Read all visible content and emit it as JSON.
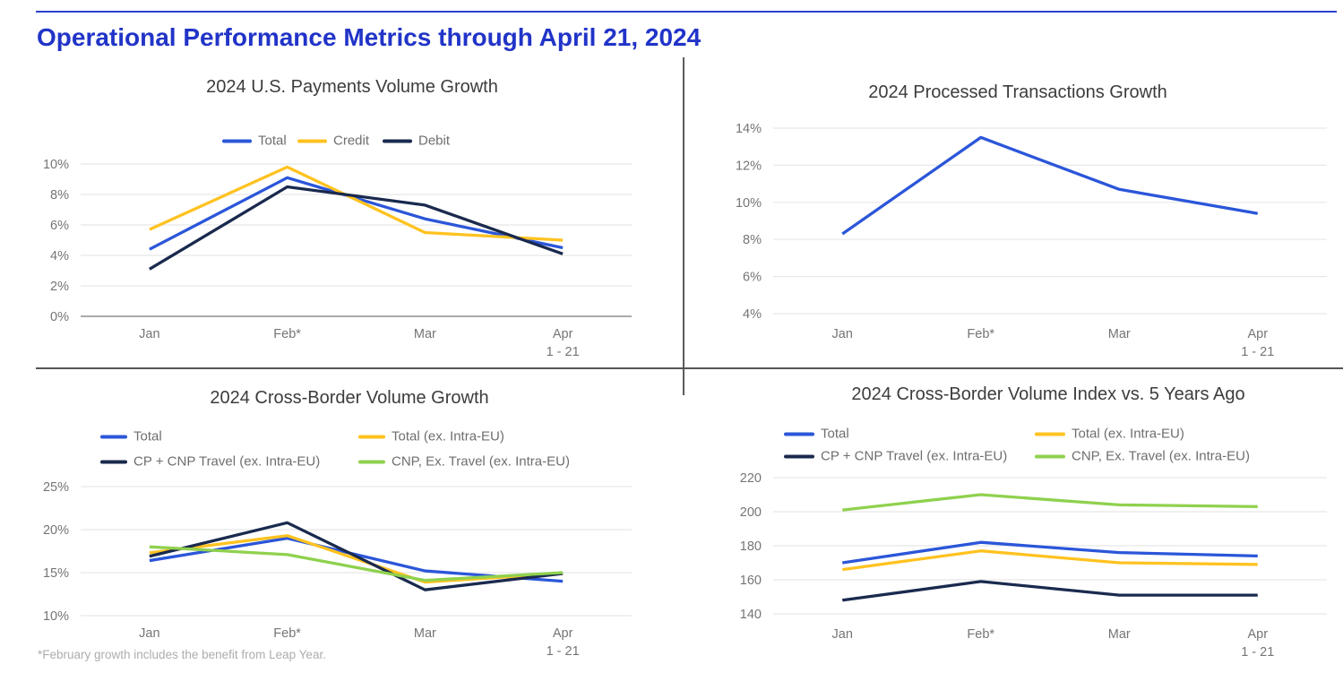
{
  "header": {
    "title": "Operational Performance Metrics through April 21, 2024",
    "accent_color": "#2134c8"
  },
  "footnote": "*February growth includes the benefit from Leap Year.",
  "colors": {
    "blue": "#2b56d9",
    "gold": "#ffc220",
    "navy": "#1a2a4e",
    "green": "#8fd14e",
    "gridline": "#e8e8e8",
    "axis_baseline": "#8f8f8f",
    "divider": "#555555"
  },
  "chart_data": [
    {
      "type": "line",
      "title": "2024 U.S. Payments Volume Growth",
      "categories": [
        "Jan",
        "Feb*",
        "Mar",
        "Apr"
      ],
      "last_category_note": "1 - 21",
      "yticks": [
        "10%",
        "8%",
        "6%",
        "4%",
        "2%",
        "0%"
      ],
      "ylim": [
        0,
        10
      ],
      "grid": true,
      "baseline_tick_index": 5,
      "legend_position": "top-center-row",
      "series": [
        {
          "name": "Total",
          "color": "#2b56d9",
          "values": [
            4.4,
            9.1,
            6.4,
            4.5
          ]
        },
        {
          "name": "Credit",
          "color": "#ffc220",
          "values": [
            5.7,
            9.8,
            5.5,
            5.0
          ]
        },
        {
          "name": "Debit",
          "color": "#1a2a4e",
          "values": [
            3.1,
            8.5,
            7.3,
            4.1
          ]
        }
      ]
    },
    {
      "type": "line",
      "title": "2024 Processed Transactions Growth",
      "categories": [
        "Jan",
        "Feb*",
        "Mar",
        "Apr"
      ],
      "last_category_note": "1 - 21",
      "yticks": [
        "14%",
        "12%",
        "10%",
        "8%",
        "6%",
        "4%"
      ],
      "ylim": [
        4,
        14
      ],
      "grid": true,
      "legend_position": "none",
      "series": [
        {
          "name": "Total",
          "color": "#2b56d9",
          "values": [
            8.3,
            13.5,
            10.7,
            9.4
          ]
        }
      ]
    },
    {
      "type": "line",
      "title": "2024 Cross-Border Volume Growth",
      "categories": [
        "Jan",
        "Feb*",
        "Mar",
        "Apr"
      ],
      "last_category_note": "1 - 21",
      "yticks": [
        "25%",
        "20%",
        "15%",
        "10%"
      ],
      "ylim": [
        10,
        25
      ],
      "grid": true,
      "legend_position": "top-two-column",
      "series": [
        {
          "name": "Total",
          "color": "#2b56d9",
          "values": [
            16.4,
            19.0,
            15.2,
            14.0
          ]
        },
        {
          "name": "Total (ex. Intra-EU)",
          "color": "#ffc220",
          "values": [
            17.3,
            19.3,
            13.9,
            14.9
          ]
        },
        {
          "name": "CP + CNP Travel (ex. Intra-EU)",
          "color": "#1a2a4e",
          "values": [
            16.9,
            20.8,
            13.0,
            14.9
          ]
        },
        {
          "name": "CNP, Ex. Travel (ex. Intra-EU)",
          "color": "#8fd14e",
          "values": [
            18.0,
            17.1,
            14.1,
            15.0
          ]
        }
      ]
    },
    {
      "type": "line",
      "title": "2024 Cross-Border Volume Index vs. 5 Years Ago",
      "categories": [
        "Jan",
        "Feb*",
        "Mar",
        "Apr"
      ],
      "last_category_note": "1 - 21",
      "yticks": [
        "220",
        "200",
        "180",
        "160",
        "140"
      ],
      "ylim": [
        140,
        220
      ],
      "grid": true,
      "legend_position": "top-two-column",
      "series": [
        {
          "name": "Total",
          "color": "#2b56d9",
          "values": [
            170,
            182,
            176,
            174
          ]
        },
        {
          "name": "Total (ex. Intra-EU)",
          "color": "#ffc220",
          "values": [
            166,
            177,
            170,
            169
          ]
        },
        {
          "name": "CP + CNP Travel (ex. Intra-EU)",
          "color": "#1a2a4e",
          "values": [
            148,
            159,
            151,
            151
          ]
        },
        {
          "name": "CNP, Ex. Travel (ex. Intra-EU)",
          "color": "#8fd14e",
          "values": [
            201,
            210,
            204,
            203
          ]
        }
      ]
    }
  ]
}
